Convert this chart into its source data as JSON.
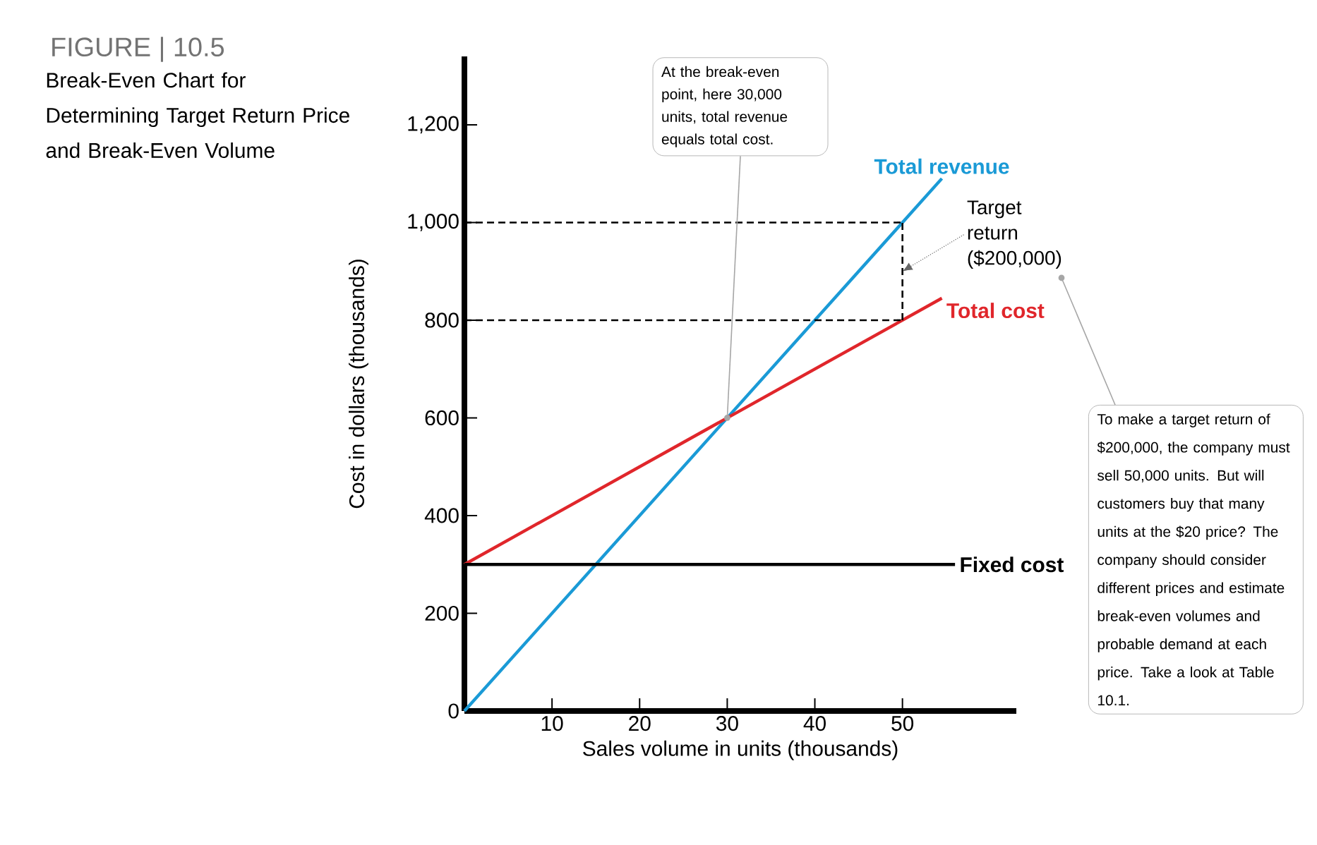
{
  "chart_data": {
    "type": "line",
    "title": "FIGURE | 10.5",
    "subtitle": "Break-Even Chart for Determining Target Return Price and Break-Even Volume",
    "xlabel": "Sales volume in units (thousands)",
    "ylabel": "Cost in dollars (thousands)",
    "xlim": [
      0,
      63
    ],
    "ylim": [
      0,
      1340
    ],
    "xticks": [
      10,
      20,
      30,
      40,
      50
    ],
    "yticks": [
      {
        "value": 0,
        "label": "0"
      },
      {
        "value": 200,
        "label": "200"
      },
      {
        "value": 400,
        "label": "400"
      },
      {
        "value": 600,
        "label": "600"
      },
      {
        "value": 800,
        "label": "800"
      },
      {
        "value": 1000,
        "label": "1,000"
      },
      {
        "value": 1200,
        "label": "1,200"
      }
    ],
    "series": [
      {
        "name": "Total revenue",
        "color": "#1a9ad6",
        "x": [
          0,
          54.5
        ],
        "values": [
          0,
          1090
        ]
      },
      {
        "name": "Total cost",
        "color": "#e0262b",
        "x": [
          0,
          54.5
        ],
        "values": [
          300,
          845
        ]
      },
      {
        "name": "Fixed cost",
        "color": "#000000",
        "x": [
          0,
          56
        ],
        "values": [
          300,
          300
        ]
      },
      {
        "color": "#000000",
        "line_style": "dashed",
        "x": [
          0,
          50
        ],
        "values": [
          1000,
          1000
        ]
      },
      {
        "color": "#000000",
        "line_style": "dashed",
        "x": [
          0,
          50
        ],
        "values": [
          800,
          800
        ]
      },
      {
        "color": "#000000",
        "line_style": "dashed",
        "x": [
          50,
          50
        ],
        "values": [
          800,
          1000
        ]
      }
    ],
    "annotations": [
      {
        "text": "At the break-even point, here 30,000 units, total revenue equals total cost.",
        "x": 30,
        "y": 600
      },
      {
        "text": "Target return ($200,000)",
        "x": 50,
        "y": 900
      },
      "To make a target return of $200,000, the company must sell 50,000 units. But will customers buy that many units at the $20 price? The company should consider different prices and estimate break-even volumes and probable demand at each price. Take a look at Table 10.1."
    ]
  }
}
